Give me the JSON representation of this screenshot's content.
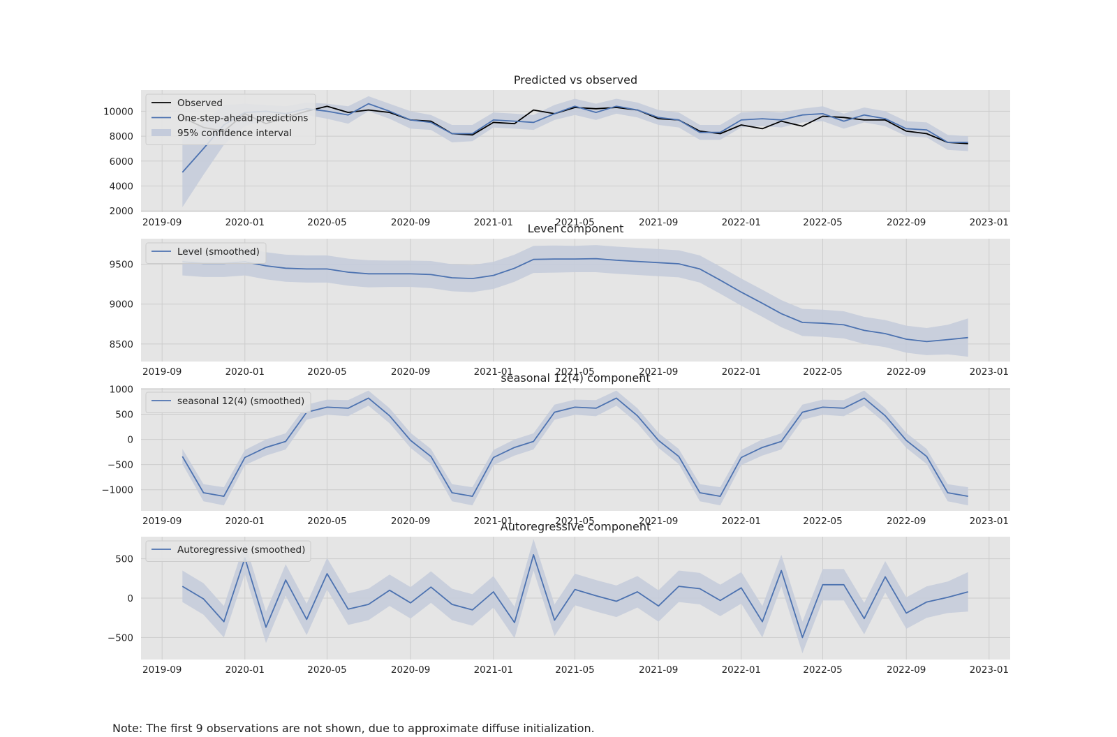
{
  "figure": {
    "note": "Note: The first 9 observations are not shown, due to approximate diffuse initialization."
  },
  "colors": {
    "background": "#e5e5e5",
    "grid": "#cccccc",
    "observed": "#000000",
    "predicted": "#4c72b0",
    "band": "#c4cbdb"
  },
  "x_ticks": [
    "2019-09",
    "2020-01",
    "2020-05",
    "2020-09",
    "2021-01",
    "2021-05",
    "2021-09",
    "2022-01",
    "2022-05",
    "2022-09",
    "2023-01"
  ],
  "chart_data": [
    {
      "type": "line",
      "title": "Predicted vs observed",
      "x": [
        "2019-10",
        "2019-11",
        "2019-12",
        "2020-01",
        "2020-02",
        "2020-03",
        "2020-04",
        "2020-05",
        "2020-06",
        "2020-07",
        "2020-08",
        "2020-09",
        "2020-10",
        "2020-11",
        "2020-12",
        "2021-01",
        "2021-02",
        "2021-03",
        "2021-04",
        "2021-05",
        "2021-06",
        "2021-07",
        "2021-08",
        "2021-09",
        "2021-10",
        "2021-11",
        "2021-12",
        "2022-01",
        "2022-02",
        "2022-03",
        "2022-04",
        "2022-05",
        "2022-06",
        "2022-07",
        "2022-08",
        "2022-09",
        "2022-10",
        "2022-11",
        "2022-12"
      ],
      "xlim": [
        "2019-08-01",
        "2023-02-01"
      ],
      "ylim": [
        1900,
        11700
      ],
      "yticks": [
        2000,
        4000,
        6000,
        8000,
        10000
      ],
      "ytick_labels": [
        "2000",
        "4000",
        "6000",
        "8000",
        "10000"
      ],
      "grid": true,
      "legend_position": "top-left",
      "series": [
        {
          "name": "Observed",
          "kind": "line",
          "color": "#000000",
          "values": [
            9500,
            8700,
            8400,
            9800,
            9000,
            9500,
            10000,
            10400,
            9900,
            10100,
            9900,
            9300,
            9200,
            8200,
            8100,
            9100,
            9000,
            10100,
            9800,
            10300,
            10200,
            10300,
            10100,
            9400,
            9300,
            8400,
            8200,
            8900,
            8600,
            9200,
            8800,
            9600,
            9500,
            9300,
            9300,
            8400,
            8200,
            7500,
            7400
          ]
        },
        {
          "name": "One-step-ahead predictions",
          "kind": "line",
          "color": "#4c72b0",
          "values": [
            5100,
            7000,
            8900,
            9900,
            10000,
            9800,
            10200,
            10000,
            9700,
            10600,
            10000,
            9300,
            9100,
            8200,
            8200,
            9300,
            9200,
            9100,
            9800,
            10400,
            9900,
            10400,
            10100,
            9500,
            9300,
            8300,
            8300,
            9300,
            9400,
            9300,
            9700,
            9800,
            9200,
            9700,
            9400,
            8600,
            8500,
            7500,
            7500
          ]
        },
        {
          "name": "95% confidence interval",
          "kind": "band",
          "color": "#c4cbdb",
          "lower": [
            2300,
            4900,
            7300,
            8800,
            9300,
            9300,
            9700,
            9400,
            9000,
            10000,
            9400,
            8600,
            8500,
            7500,
            7600,
            8700,
            8600,
            8500,
            9300,
            9700,
            9300,
            9800,
            9500,
            8900,
            8700,
            7700,
            7700,
            8700,
            8800,
            8700,
            9100,
            9200,
            8600,
            9100,
            8800,
            8000,
            7900,
            6900,
            6800
          ],
          "upper": [
            8000,
            9100,
            10500,
            10600,
            10500,
            10400,
            10700,
            10600,
            10400,
            11200,
            10600,
            10000,
            9700,
            8900,
            8900,
            9900,
            9800,
            9700,
            10500,
            11000,
            10600,
            11000,
            10700,
            10100,
            9900,
            8900,
            8900,
            9900,
            10000,
            9900,
            10200,
            10400,
            9800,
            10300,
            10000,
            9200,
            9100,
            8100,
            8000
          ]
        }
      ]
    },
    {
      "type": "line",
      "title": "Level component",
      "x": [
        "2019-10",
        "2019-11",
        "2019-12",
        "2020-01",
        "2020-02",
        "2020-03",
        "2020-04",
        "2020-05",
        "2020-06",
        "2020-07",
        "2020-08",
        "2020-09",
        "2020-10",
        "2020-11",
        "2020-12",
        "2021-01",
        "2021-02",
        "2021-03",
        "2021-04",
        "2021-05",
        "2021-06",
        "2021-07",
        "2021-08",
        "2021-09",
        "2021-10",
        "2021-11",
        "2021-12",
        "2022-01",
        "2022-02",
        "2022-03",
        "2022-04",
        "2022-05",
        "2022-06",
        "2022-07",
        "2022-08",
        "2022-09",
        "2022-10",
        "2022-11",
        "2022-12"
      ],
      "xlim": [
        "2019-08-01",
        "2023-02-01"
      ],
      "ylim": [
        8280,
        9820
      ],
      "yticks": [
        8500,
        9000,
        9500
      ],
      "ytick_labels": [
        "8500",
        "9000",
        "9500"
      ],
      "grid": true,
      "legend_position": "top-left",
      "series": [
        {
          "name": "Level (smoothed)",
          "kind": "line",
          "color": "#4c72b0",
          "values": [
            9530,
            9510,
            9510,
            9530,
            9480,
            9450,
            9440,
            9440,
            9400,
            9380,
            9380,
            9380,
            9370,
            9330,
            9320,
            9360,
            9450,
            9560,
            9565,
            9565,
            9570,
            9550,
            9535,
            9520,
            9505,
            9440,
            9300,
            9150,
            9010,
            8880,
            8770,
            8760,
            8740,
            8670,
            8630,
            8560,
            8530,
            8555,
            8580
          ]
        },
        {
          "name": "Level (smoothed) 95% CI",
          "kind": "band",
          "color": "#c4cbdb",
          "lower": [
            9360,
            9340,
            9340,
            9360,
            9310,
            9280,
            9270,
            9270,
            9230,
            9210,
            9215,
            9215,
            9200,
            9160,
            9150,
            9190,
            9280,
            9390,
            9395,
            9400,
            9400,
            9380,
            9365,
            9350,
            9335,
            9270,
            9130,
            8980,
            8840,
            8710,
            8600,
            8590,
            8570,
            8500,
            8460,
            8390,
            8360,
            8370,
            8340
          ]
        },
        {
          "name": "Level (smoothed) 95% CI upper",
          "kind": "band-upper",
          "color": "#c4cbdb",
          "upper": [
            9700,
            9680,
            9680,
            9700,
            9650,
            9620,
            9610,
            9610,
            9570,
            9550,
            9545,
            9545,
            9540,
            9500,
            9490,
            9530,
            9620,
            9730,
            9735,
            9730,
            9740,
            9720,
            9705,
            9690,
            9675,
            9610,
            9470,
            9320,
            9180,
            9050,
            8940,
            8930,
            8910,
            8840,
            8800,
            8730,
            8700,
            8740,
            8820
          ]
        }
      ]
    },
    {
      "type": "line",
      "title": "seasonal 12(4) component",
      "x": [
        "2019-10",
        "2019-11",
        "2019-12",
        "2020-01",
        "2020-02",
        "2020-03",
        "2020-04",
        "2020-05",
        "2020-06",
        "2020-07",
        "2020-08",
        "2020-09",
        "2020-10",
        "2020-11",
        "2020-12",
        "2021-01",
        "2021-02",
        "2021-03",
        "2021-04",
        "2021-05",
        "2021-06",
        "2021-07",
        "2021-08",
        "2021-09",
        "2021-10",
        "2021-11",
        "2021-12",
        "2022-01",
        "2022-02",
        "2022-03",
        "2022-04",
        "2022-05",
        "2022-06",
        "2022-07",
        "2022-08",
        "2022-09",
        "2022-10",
        "2022-11",
        "2022-12"
      ],
      "xlim": [
        "2019-08-01",
        "2023-02-01"
      ],
      "ylim": [
        -1420,
        1020
      ],
      "yticks": [
        -1000,
        -500,
        0,
        500,
        1000
      ],
      "ytick_labels": [
        "−1000",
        "−500",
        "0",
        "500",
        "1000"
      ],
      "grid": true,
      "legend_position": "top-left",
      "series": [
        {
          "name": "seasonal 12(4) (smoothed)",
          "kind": "line",
          "color": "#4c72b0",
          "values": [
            -340,
            -1060,
            -1130,
            -360,
            -160,
            -40,
            540,
            640,
            620,
            820,
            470,
            -20,
            -340,
            -1060,
            -1130,
            -360,
            -160,
            -40,
            540,
            640,
            620,
            820,
            470,
            -20,
            -340,
            -1060,
            -1130,
            -360,
            -160,
            -40,
            540,
            640,
            620,
            820,
            470,
            -20,
            -340,
            -1060,
            -1130
          ]
        },
        {
          "name": "seasonal 95% CI",
          "kind": "band",
          "color": "#c4cbdb",
          "lower": [
            -490,
            -1230,
            -1310,
            -510,
            -320,
            -200,
            390,
            490,
            460,
            670,
            320,
            -170,
            -490,
            -1230,
            -1310,
            -510,
            -320,
            -200,
            390,
            490,
            460,
            670,
            320,
            -170,
            -490,
            -1230,
            -1310,
            -510,
            -320,
            -200,
            390,
            490,
            460,
            670,
            320,
            -170,
            -490,
            -1230,
            -1310
          ],
          "upper": [
            -190,
            -890,
            -950,
            -210,
            0,
            120,
            690,
            790,
            780,
            970,
            620,
            130,
            -190,
            -890,
            -950,
            -210,
            0,
            120,
            690,
            790,
            780,
            970,
            620,
            130,
            -190,
            -890,
            -950,
            -210,
            0,
            120,
            690,
            790,
            780,
            970,
            620,
            130,
            -190,
            -890,
            -950
          ]
        }
      ]
    },
    {
      "type": "line",
      "title": "Autoregressive component",
      "x": [
        "2019-10",
        "2019-11",
        "2019-12",
        "2020-01",
        "2020-02",
        "2020-03",
        "2020-04",
        "2020-05",
        "2020-06",
        "2020-07",
        "2020-08",
        "2020-09",
        "2020-10",
        "2020-11",
        "2020-12",
        "2021-01",
        "2021-02",
        "2021-03",
        "2021-04",
        "2021-05",
        "2021-06",
        "2021-07",
        "2021-08",
        "2021-09",
        "2021-10",
        "2021-11",
        "2021-12",
        "2022-01",
        "2022-02",
        "2022-03",
        "2022-04",
        "2022-05",
        "2022-06",
        "2022-07",
        "2022-08",
        "2022-09",
        "2022-10",
        "2022-11",
        "2022-12"
      ],
      "xlim": [
        "2019-08-01",
        "2023-02-01"
      ],
      "ylim": [
        -780,
        780
      ],
      "yticks": [
        -500,
        0,
        500
      ],
      "ytick_labels": [
        "−500",
        "0",
        "500"
      ],
      "grid": true,
      "legend_position": "top-left",
      "series": [
        {
          "name": "Autoregressive (smoothed)",
          "kind": "line",
          "color": "#4c72b0",
          "values": [
            150,
            -10,
            -300,
            510,
            -370,
            230,
            -270,
            310,
            -140,
            -80,
            100,
            -60,
            140,
            -80,
            -150,
            80,
            -310,
            550,
            -280,
            110,
            30,
            -40,
            80,
            -100,
            150,
            120,
            -30,
            130,
            -300,
            350,
            -500,
            170,
            170,
            -260,
            270,
            -190,
            -50,
            10,
            80
          ]
        },
        {
          "name": "Autoregressive 95% CI",
          "kind": "band",
          "color": "#c4cbdb",
          "lower": [
            -50,
            -210,
            -500,
            310,
            -570,
            30,
            -470,
            110,
            -340,
            -280,
            -100,
            -260,
            -60,
            -280,
            -350,
            -120,
            -510,
            350,
            -480,
            -90,
            -170,
            -240,
            -120,
            -300,
            -50,
            -80,
            -230,
            -70,
            -500,
            150,
            -700,
            -30,
            -30,
            -460,
            70,
            -390,
            -250,
            -190,
            -170
          ]
        },
        {
          "name": "Autoregressive 95% CI upper",
          "kind": "band-upper",
          "color": "#c4cbdb",
          "upper": [
            350,
            190,
            -100,
            710,
            -170,
            430,
            -70,
            510,
            60,
            120,
            300,
            140,
            340,
            120,
            50,
            280,
            -110,
            750,
            -80,
            310,
            230,
            160,
            280,
            100,
            350,
            320,
            170,
            330,
            -100,
            550,
            -300,
            370,
            370,
            -60,
            470,
            10,
            150,
            210,
            330
          ]
        }
      ]
    }
  ]
}
